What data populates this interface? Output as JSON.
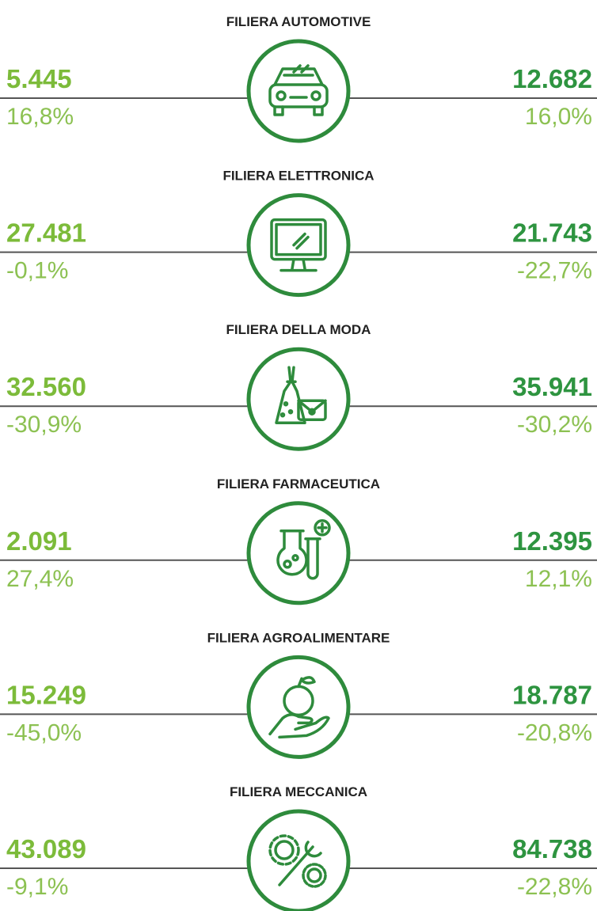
{
  "sections": [
    {
      "title": "FILIERA AUTOMOTIVE",
      "left_value": "5.445",
      "left_pct": "16,8%",
      "right_value": "12.682",
      "right_pct": "16,0%"
    },
    {
      "title": "FILIERA ELETTRONICA",
      "left_value": "27.481",
      "left_pct": "-0,1%",
      "right_value": "21.743",
      "right_pct": "-22,7%"
    },
    {
      "title": "FILIERA DELLA MODA",
      "left_value": "32.560",
      "left_pct": "-30,9%",
      "right_value": "35.941",
      "right_pct": "-30,2%"
    },
    {
      "title": "FILIERA FARMACEUTICA",
      "left_value": "2.091",
      "left_pct": "27,4%",
      "right_value": "12.395",
      "right_pct": "12,1%"
    },
    {
      "title": "FILIERA AGROALIMENTARE",
      "left_value": "15.249",
      "left_pct": "-45,0%",
      "right_value": "18.787",
      "right_pct": "-20,8%"
    },
    {
      "title": "FILIERA MECCANICA",
      "left_value": "43.089",
      "left_pct": "-9,1%",
      "right_value": "84.738",
      "right_pct": "-22,8%"
    }
  ]
}
